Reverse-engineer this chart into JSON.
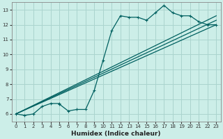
{
  "background_color": "#cceee8",
  "grid_color": "#aad4ce",
  "line_color": "#006060",
  "xlabel": "Humidex (Indice chaleur)",
  "xlim": [
    -0.5,
    23.5
  ],
  "ylim": [
    5.5,
    13.5
  ],
  "xticks": [
    0,
    1,
    2,
    3,
    4,
    5,
    6,
    7,
    8,
    9,
    10,
    11,
    12,
    13,
    14,
    15,
    16,
    17,
    18,
    19,
    20,
    21,
    22,
    23
  ],
  "yticks": [
    6,
    7,
    8,
    9,
    10,
    11,
    12,
    13
  ],
  "series1_x": [
    0,
    1,
    2,
    3,
    4,
    5,
    5,
    6,
    7,
    8,
    9,
    10,
    11,
    12,
    13,
    14,
    15,
    16,
    17,
    18,
    19,
    20,
    21,
    22,
    23
  ],
  "series1_y": [
    6.0,
    5.9,
    6.0,
    6.5,
    6.7,
    6.7,
    6.65,
    6.2,
    6.3,
    6.3,
    7.6,
    9.6,
    11.6,
    12.6,
    12.5,
    12.5,
    12.3,
    12.8,
    13.3,
    12.8,
    12.6,
    12.6,
    12.2,
    12.0,
    12.0
  ],
  "line2_x": [
    0,
    23
  ],
  "line2_y": [
    6.0,
    12.0
  ],
  "line3_x": [
    0,
    23
  ],
  "line3_y": [
    6.0,
    12.3
  ],
  "line4_x": [
    0,
    23
  ],
  "line4_y": [
    6.0,
    12.6
  ]
}
